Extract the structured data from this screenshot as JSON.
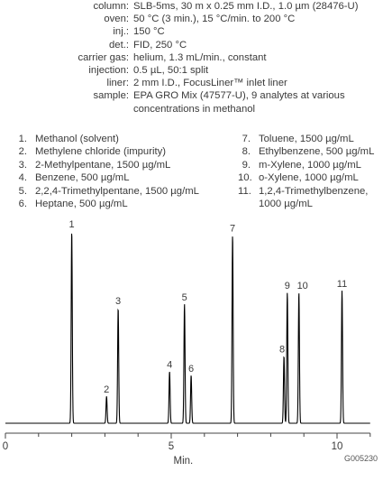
{
  "conditions": [
    {
      "key": "column:",
      "value": "SLB-5ms, 30 m x 0.25 mm I.D., 1.0 µm (28476-U)"
    },
    {
      "key": "oven:",
      "value": "50 °C (3 min.), 15 °C/min. to 200 °C"
    },
    {
      "key": "inj.:",
      "value": "150 °C"
    },
    {
      "key": "det.:",
      "value": "FID, 250 °C"
    },
    {
      "key": "carrier gas:",
      "value": "helium, 1.3 mL/min., constant"
    },
    {
      "key": "injection:",
      "value": "0.5 µL, 50:1 split"
    },
    {
      "key": "liner:",
      "value": "2 mm I.D., FocusLiner™ inlet liner"
    },
    {
      "key": "sample:",
      "value": "EPA GRO Mix (47577-U), 9 analytes at various\nconcentrations in methanol"
    }
  ],
  "legend_left": [
    {
      "num": "1.",
      "text": "Methanol (solvent)"
    },
    {
      "num": "2.",
      "text": "Methylene chloride (impurity)"
    },
    {
      "num": "3.",
      "text": "2-Methylpentane, 1500 µg/mL"
    },
    {
      "num": "4.",
      "text": "Benzene, 500 µg/mL"
    },
    {
      "num": "5.",
      "text": "2,2,4-Trimethylpentane, 1500 µg/mL"
    },
    {
      "num": "6.",
      "text": "Heptane, 500 µg/mL"
    }
  ],
  "legend_right": [
    {
      "num": "7.",
      "text": "Toluene, 1500 µg/mL"
    },
    {
      "num": "8.",
      "text": "Ethylbenzene, 500 µg/mL"
    },
    {
      "num": "9.",
      "text": "m-Xylene, 1000 µg/mL"
    },
    {
      "num": "10.",
      "text": "o-Xylene, 1000 µg/mL"
    },
    {
      "num": "11.",
      "text": "1,2,4-Trimethylbenzene,\n1000 µg/mL"
    }
  ],
  "chart_data": {
    "type": "line",
    "xlabel": "Min.",
    "xlim": [
      0,
      11
    ],
    "x_ticks": [
      "0",
      "5",
      "10"
    ],
    "ylim": [
      0,
      100
    ],
    "grid": false,
    "peaks": [
      {
        "label": "1",
        "x": 2.0,
        "height": 100
      },
      {
        "label": "2",
        "x": 3.05,
        "height": 14
      },
      {
        "label": "3",
        "x": 3.4,
        "height": 60
      },
      {
        "label": "4",
        "x": 4.95,
        "height": 27
      },
      {
        "label": "5",
        "x": 5.4,
        "height": 62
      },
      {
        "label": "6",
        "x": 5.6,
        "height": 25
      },
      {
        "label": "7",
        "x": 6.85,
        "height": 98
      },
      {
        "label": "8",
        "x": 8.4,
        "height": 35
      },
      {
        "label": "9",
        "x": 8.5,
        "height": 68
      },
      {
        "label": "10",
        "x": 8.85,
        "height": 68
      },
      {
        "label": "11",
        "x": 10.15,
        "height": 69
      }
    ]
  },
  "figure_code": "G005230",
  "colors": {
    "trace": "#000000",
    "text": "#3a3a3a"
  }
}
